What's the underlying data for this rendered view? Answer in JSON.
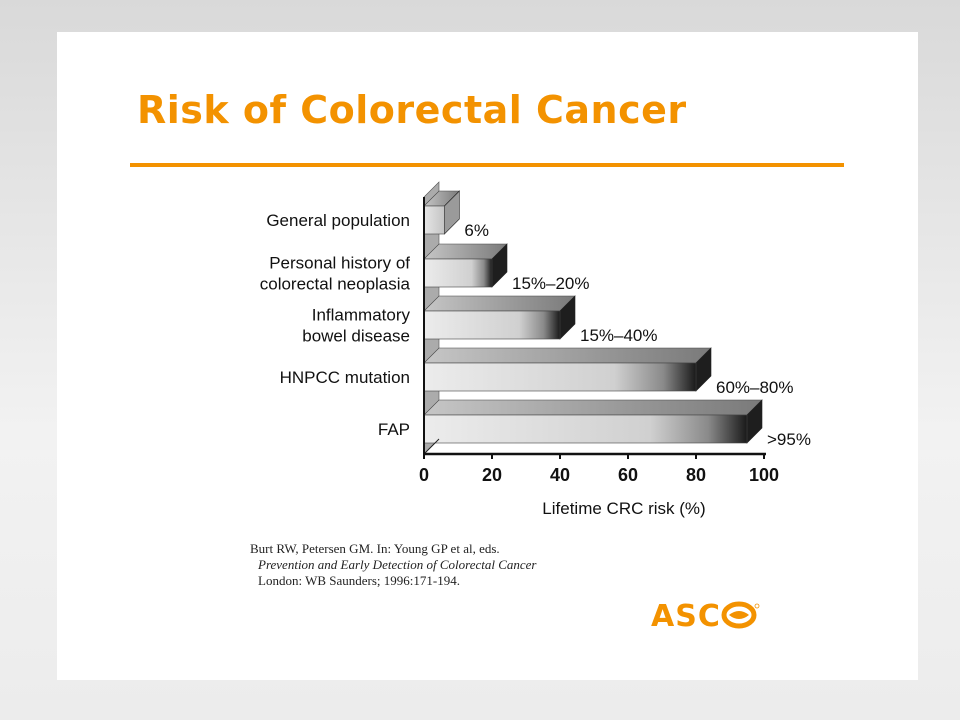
{
  "slide": {
    "title": "Risk of Colorectal Cancer",
    "accent_color": "#f39200",
    "citation": {
      "line1": "Burt RW, Petersen GM. In: Young GP et al, eds.",
      "line2": "Prevention and Early Detection of Colorectal Cancer",
      "line3": "London: WB Saunders; 1996:171-194."
    },
    "logo": {
      "text": "ASC",
      "icon": "globe-o-icon"
    }
  },
  "chart_data": {
    "type": "bar",
    "orientation": "horizontal",
    "style": "3d-gradient",
    "categories": [
      "General population",
      "Personal history of colorectal neoplasia",
      "Inflammatory bowel disease",
      "HNPCC mutation",
      "FAP"
    ],
    "category_lines": [
      [
        "General population"
      ],
      [
        "Personal history of",
        "colorectal neoplasia"
      ],
      [
        "Inflammatory",
        "bowel disease"
      ],
      [
        "HNPCC mutation"
      ],
      [
        "FAP"
      ]
    ],
    "values": [
      6,
      20,
      40,
      80,
      95
    ],
    "data_labels": [
      "6%",
      "15%–20%",
      "15%–40%",
      "60%–80%",
      ">95%"
    ],
    "xlabel": "Lifetime CRC risk (%)",
    "xlim": [
      0,
      100
    ],
    "xticks": [
      0,
      20,
      40,
      60,
      80,
      100
    ],
    "xtick_labels": [
      "0",
      "20",
      "40",
      "60",
      "80",
      "100"
    ]
  }
}
